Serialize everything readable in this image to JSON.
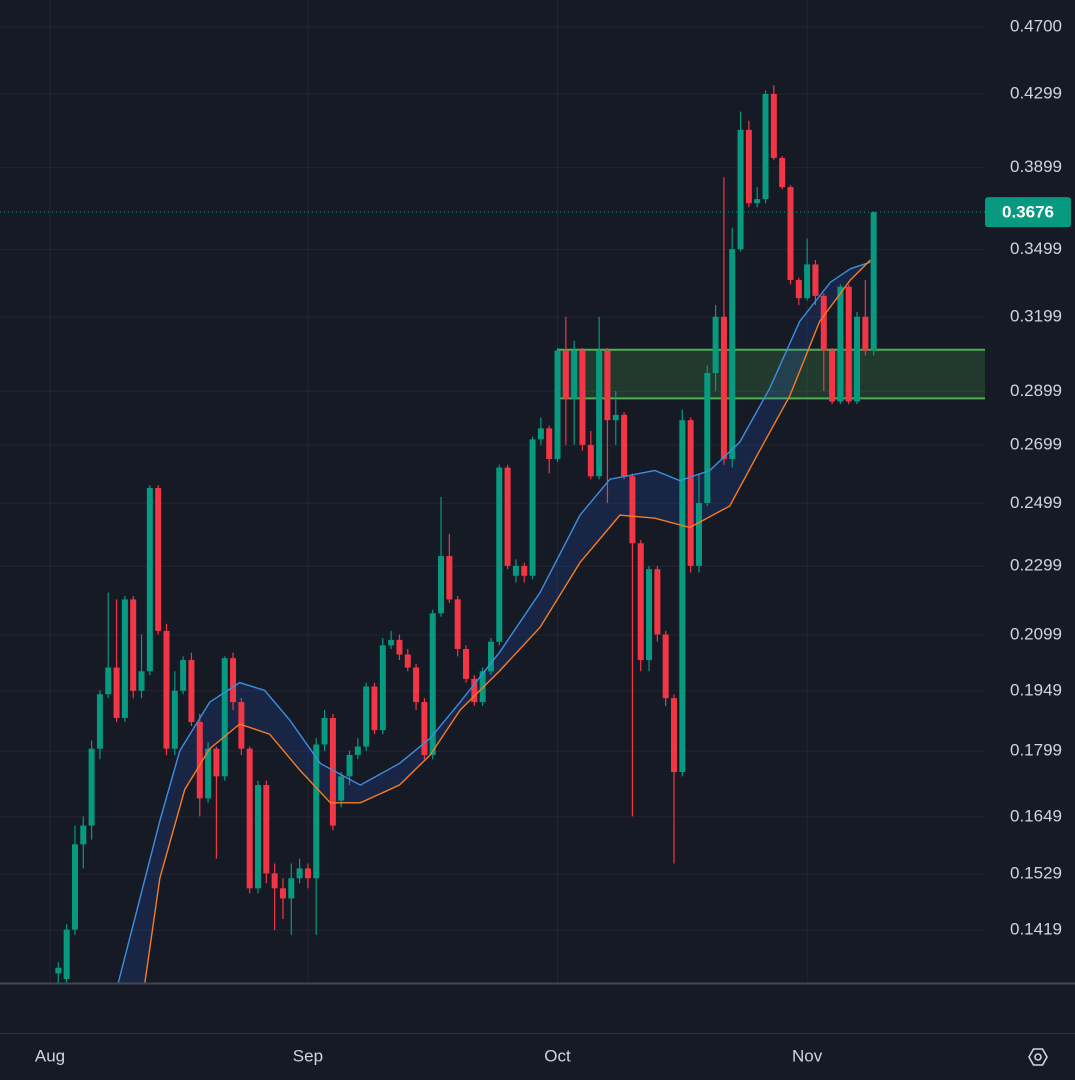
{
  "chart_data": {
    "type": "candlestick",
    "log_scale": true,
    "grid": true,
    "categories": [
      "Aug",
      null,
      null,
      null,
      null,
      null,
      null,
      null,
      null,
      null,
      null,
      null,
      null,
      null,
      null,
      null,
      null,
      null,
      null,
      null,
      null,
      null,
      null,
      null,
      null,
      null,
      null,
      null,
      null,
      null,
      null,
      "Sep",
      null,
      null,
      null,
      null,
      null,
      null,
      null,
      null,
      null,
      null,
      null,
      null,
      null,
      null,
      null,
      null,
      null,
      null,
      null,
      null,
      null,
      null,
      null,
      null,
      null,
      null,
      null,
      null,
      null,
      "Oct",
      null,
      null,
      null,
      null,
      null,
      null,
      null,
      null,
      null,
      null,
      null,
      null,
      null,
      null,
      null,
      null,
      null,
      null,
      null,
      null,
      null,
      null,
      null,
      null,
      null,
      null,
      null,
      null,
      null,
      "Nov",
      null,
      null,
      null,
      null,
      null,
      null,
      null,
      null
    ],
    "open": [
      null,
      0.134,
      0.133,
      0.142,
      0.159,
      0.163,
      0.1805,
      0.194,
      0.201,
      0.188,
      0.22,
      0.1949,
      0.2,
      0.255,
      0.211,
      0.1805,
      0.1949,
      0.203,
      0.187,
      0.169,
      0.1805,
      0.174,
      0.2035,
      0.192,
      0.1805,
      0.15,
      0.172,
      0.153,
      0.15,
      0.148,
      0.152,
      0.154,
      0.152,
      0.1815,
      0.188,
      0.1685,
      0.174,
      0.179,
      0.181,
      0.196,
      0.185,
      0.207,
      0.2085,
      0.2045,
      0.201,
      0.192,
      0.179,
      0.216,
      0.233,
      0.22,
      0.206,
      0.198,
      0.192,
      0.2,
      0.208,
      0.262,
      0.227,
      0.23,
      0.227,
      0.272,
      0.276,
      0.265,
      0.306,
      0.287,
      0.306,
      0.27,
      0.259,
      0.306,
      0.279,
      0.281,
      0.259,
      0.237,
      0.203,
      0.229,
      0.21,
      0.193,
      0.175,
      0.279,
      0.23,
      0.25,
      0.297,
      0.32,
      0.265,
      0.35,
      0.41,
      0.372,
      0.374,
      0.43,
      0.395,
      0.38,
      0.336,
      0.328,
      0.343,
      0.329,
      0.306,
      0.286,
      0.333,
      0.286,
      0.32,
      0.306
    ],
    "high": [
      null,
      0.136,
      0.143,
      0.163,
      0.165,
      0.1825,
      0.195,
      0.222,
      0.22,
      0.221,
      0.221,
      0.21,
      0.256,
      0.256,
      0.213,
      0.2,
      0.204,
      0.205,
      0.189,
      0.182,
      0.181,
      0.204,
      0.205,
      0.193,
      0.181,
      0.173,
      0.173,
      0.155,
      0.152,
      0.155,
      0.156,
      0.155,
      0.183,
      0.19,
      0.189,
      0.175,
      0.18,
      0.183,
      0.197,
      0.197,
      0.209,
      0.211,
      0.21,
      0.206,
      0.202,
      0.193,
      0.217,
      0.252,
      0.24,
      0.221,
      0.207,
      0.199,
      0.201,
      0.209,
      0.263,
      0.263,
      0.232,
      0.231,
      0.273,
      0.28,
      0.277,
      0.307,
      0.32,
      0.31,
      0.307,
      0.275,
      0.32,
      0.307,
      0.29,
      0.282,
      0.26,
      0.238,
      0.23,
      0.23,
      0.211,
      0.194,
      0.283,
      0.28,
      0.26,
      0.3,
      0.325,
      0.385,
      0.36,
      0.42,
      0.415,
      0.38,
      0.432,
      0.435,
      0.396,
      0.381,
      0.337,
      0.355,
      0.345,
      0.33,
      0.307,
      0.334,
      0.334,
      0.322,
      0.336,
      0.368
    ],
    "low": [
      null,
      0.132,
      0.132,
      0.141,
      0.154,
      0.16,
      0.178,
      0.193,
      0.187,
      0.187,
      0.193,
      0.193,
      0.199,
      0.21,
      0.179,
      0.179,
      0.194,
      0.186,
      0.165,
      0.168,
      0.156,
      0.173,
      0.19,
      0.179,
      0.149,
      0.149,
      0.151,
      0.1419,
      0.144,
      0.141,
      0.151,
      0.15,
      0.141,
      0.18,
      0.162,
      0.167,
      0.172,
      0.178,
      0.18,
      0.184,
      0.184,
      0.206,
      0.203,
      0.2,
      0.19,
      0.178,
      0.178,
      0.215,
      0.219,
      0.204,
      0.197,
      0.191,
      0.191,
      0.199,
      0.207,
      0.229,
      0.225,
      0.225,
      0.226,
      0.27,
      0.26,
      0.264,
      0.27,
      0.27,
      0.268,
      0.258,
      0.258,
      0.25,
      0.27,
      0.258,
      0.165,
      0.2,
      0.2,
      0.208,
      0.191,
      0.155,
      0.174,
      0.228,
      0.228,
      0.249,
      0.29,
      0.263,
      0.262,
      0.349,
      0.37,
      0.37,
      0.372,
      0.394,
      0.379,
      0.334,
      0.325,
      0.327,
      0.325,
      0.29,
      0.285,
      0.285,
      0.285,
      0.285,
      0.304,
      0.304
    ],
    "close": [
      null,
      0.135,
      0.142,
      0.159,
      0.163,
      0.1805,
      0.194,
      0.201,
      0.188,
      0.22,
      0.1949,
      0.2,
      0.255,
      0.211,
      0.1805,
      0.1949,
      0.203,
      0.187,
      0.169,
      0.1805,
      0.174,
      0.2035,
      0.192,
      0.1805,
      0.15,
      0.172,
      0.153,
      0.15,
      0.148,
      0.152,
      0.154,
      0.152,
      0.1815,
      0.188,
      0.163,
      0.174,
      0.179,
      0.181,
      0.196,
      0.185,
      0.207,
      0.2085,
      0.2045,
      0.201,
      0.192,
      0.179,
      0.216,
      0.233,
      0.22,
      0.206,
      0.198,
      0.192,
      0.2,
      0.208,
      0.262,
      0.23,
      0.23,
      0.227,
      0.272,
      0.276,
      0.265,
      0.306,
      0.287,
      0.306,
      0.27,
      0.259,
      0.306,
      0.279,
      0.281,
      0.259,
      0.237,
      0.203,
      0.229,
      0.21,
      0.193,
      0.175,
      0.279,
      0.23,
      0.25,
      0.297,
      0.32,
      0.265,
      0.35,
      0.41,
      0.372,
      0.374,
      0.43,
      0.395,
      0.38,
      0.336,
      0.328,
      0.343,
      0.329,
      0.306,
      0.286,
      0.333,
      0.286,
      0.32,
      0.306,
      0.3676
    ],
    "up_color": "#089981",
    "down_color": "#f23645",
    "lines": [
      {
        "color": "#3d8fe0",
        "x": [
          8.2,
          13.2,
          15.6,
          19.2,
          22.8,
          25.8,
          28.8,
          32.5,
          37.3,
          42,
          45.7,
          49.3,
          54,
          58.9,
          63.7,
          67.3,
          72.7,
          75.7,
          79.3,
          82.9,
          86.5,
          90.1,
          93.8,
          96.2,
          98.6
        ],
        "values": [
          0.1323,
          0.164,
          0.18,
          0.192,
          0.197,
          0.195,
          0.1875,
          0.177,
          0.172,
          0.177,
          0.183,
          0.192,
          0.205,
          0.222,
          0.246,
          0.258,
          0.261,
          0.2575,
          0.261,
          0.271,
          0.291,
          0.318,
          0.335,
          0.341,
          0.344
        ]
      },
      {
        "color": "#f57c22",
        "x": [
          11.4,
          13.2,
          16.2,
          19.2,
          22.8,
          26.4,
          30,
          33.7,
          37.3,
          42,
          45.7,
          49.3,
          54,
          58.9,
          63.7,
          68.5,
          72.7,
          76.9,
          81.7,
          85.3,
          88.9,
          92.5,
          96.2,
          98.6
        ],
        "values": [
          0.1323,
          0.152,
          0.171,
          0.1805,
          0.1865,
          0.184,
          0.1755,
          0.168,
          0.168,
          0.172,
          0.179,
          0.19,
          0.2,
          0.212,
          0.231,
          0.246,
          0.245,
          0.242,
          0.249,
          0.268,
          0.288,
          0.318,
          0.336,
          0.345
        ]
      }
    ],
    "band_color": "#2962ff",
    "zone": {
      "x": 61,
      "low": 0.2872,
      "high": 0.3063,
      "color": "#4caf50"
    },
    "last_price": 0.3676,
    "ylim": [
      0.1323,
      0.487
    ],
    "yticks": [
      {
        "value": 0.47,
        "label": "0.4700"
      },
      0.4299,
      0.3899,
      0.3499,
      0.3199,
      0.2899,
      0.2699,
      0.2499,
      0.2299,
      0.2099,
      0.1949,
      0.1799,
      0.1649,
      0.1529,
      0.1419
    ]
  }
}
